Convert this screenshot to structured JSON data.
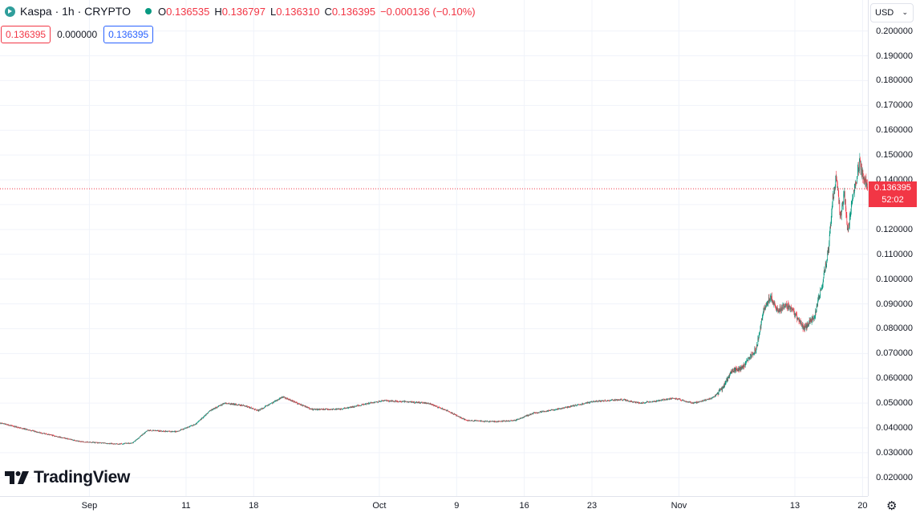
{
  "legend": {
    "symbol": "Kaspa · 1h · CRYPTO",
    "open_label": "O",
    "open": "0.136535",
    "high_label": "H",
    "high": "0.136797",
    "low_label": "L",
    "low": "0.136310",
    "close_label": "C",
    "close": "0.136395",
    "change": "−0.000136 (−0.10%)"
  },
  "quotes": {
    "sell": "0.136395",
    "spread": "0.000000",
    "buy": "0.136395"
  },
  "currency": "USD",
  "last_price": {
    "value": "0.136395",
    "countdown": "52:02"
  },
  "brand": "TradingView",
  "colors": {
    "up": "#089981",
    "down": "#f23645",
    "grid": "#f0f3fa",
    "accent": "#2962ff"
  },
  "chart_data": {
    "type": "candlestick",
    "title": "Kaspa · 1h · CRYPTO",
    "ylim": [
      0.0125,
      0.2125
    ],
    "y_ticks": [
      0.02,
      0.03,
      0.04,
      0.05,
      0.06,
      0.07,
      0.08,
      0.09,
      0.1,
      0.11,
      0.12,
      0.13,
      0.14,
      0.15,
      0.16,
      0.17,
      0.18,
      0.19,
      0.2
    ],
    "y_tick_labels": [
      "0.020000",
      "0.030000",
      "0.040000",
      "0.050000",
      "0.060000",
      "0.070000",
      "0.080000",
      "0.090000",
      "0.100000",
      "0.110000",
      "0.120000",
      "0.130000",
      "0.140000",
      "0.150000",
      "0.160000",
      "0.170000",
      "0.180000",
      "0.190000",
      "0.200000"
    ],
    "x_ticks": [
      {
        "label": "Sep",
        "t": 0
      },
      {
        "label": "11",
        "t": 10
      },
      {
        "label": "18",
        "t": 17
      },
      {
        "label": "Oct",
        "t": 30
      },
      {
        "label": "9",
        "t": 38
      },
      {
        "label": "16",
        "t": 45
      },
      {
        "label": "23",
        "t": 52
      },
      {
        "label": "Nov",
        "t": 61
      },
      {
        "label": "13",
        "t": 73
      },
      {
        "label": "20",
        "t": 80
      }
    ],
    "x_range": [
      -9.25,
      80.55
    ],
    "trend": [
      [
        -9.25,
        0.042
      ],
      [
        -5,
        0.038
      ],
      [
        -1,
        0.0345
      ],
      [
        3,
        0.0335
      ],
      [
        4.5,
        0.034
      ],
      [
        6,
        0.039
      ],
      [
        9,
        0.0385
      ],
      [
        11,
        0.0415
      ],
      [
        12.5,
        0.047
      ],
      [
        14,
        0.05
      ],
      [
        16,
        0.049
      ],
      [
        17.5,
        0.047
      ],
      [
        20,
        0.0525
      ],
      [
        21.5,
        0.05
      ],
      [
        23,
        0.0475
      ],
      [
        26,
        0.0475
      ],
      [
        29,
        0.05
      ],
      [
        30.5,
        0.051
      ],
      [
        33,
        0.0505
      ],
      [
        35,
        0.05
      ],
      [
        37,
        0.047
      ],
      [
        39,
        0.043
      ],
      [
        42,
        0.0425
      ],
      [
        44,
        0.043
      ],
      [
        46,
        0.046
      ],
      [
        49,
        0.048
      ],
      [
        52,
        0.0505
      ],
      [
        55,
        0.0515
      ],
      [
        57,
        0.05
      ],
      [
        59,
        0.051
      ],
      [
        60.5,
        0.052
      ],
      [
        62.5,
        0.05
      ],
      [
        64.5,
        0.052
      ],
      [
        65.5,
        0.056
      ],
      [
        66.5,
        0.063
      ],
      [
        67.5,
        0.064
      ],
      [
        69,
        0.072
      ],
      [
        69.8,
        0.088
      ],
      [
        70.5,
        0.093
      ],
      [
        71.2,
        0.087
      ],
      [
        72,
        0.09
      ],
      [
        73,
        0.086
      ],
      [
        74,
        0.08
      ],
      [
        75,
        0.085
      ],
      [
        75.8,
        0.097
      ],
      [
        76.5,
        0.113
      ],
      [
        76.9,
        0.132
      ],
      [
        77.3,
        0.141
      ],
      [
        77.7,
        0.125
      ],
      [
        78.1,
        0.135
      ],
      [
        78.5,
        0.118
      ],
      [
        78.9,
        0.132
      ],
      [
        79.3,
        0.138
      ],
      [
        79.7,
        0.147
      ],
      [
        80.1,
        0.141
      ],
      [
        80.55,
        0.1364
      ]
    ],
    "last_price": 0.136395,
    "last_price_label": "0.136395",
    "countdown": "52:02",
    "grid": true
  }
}
